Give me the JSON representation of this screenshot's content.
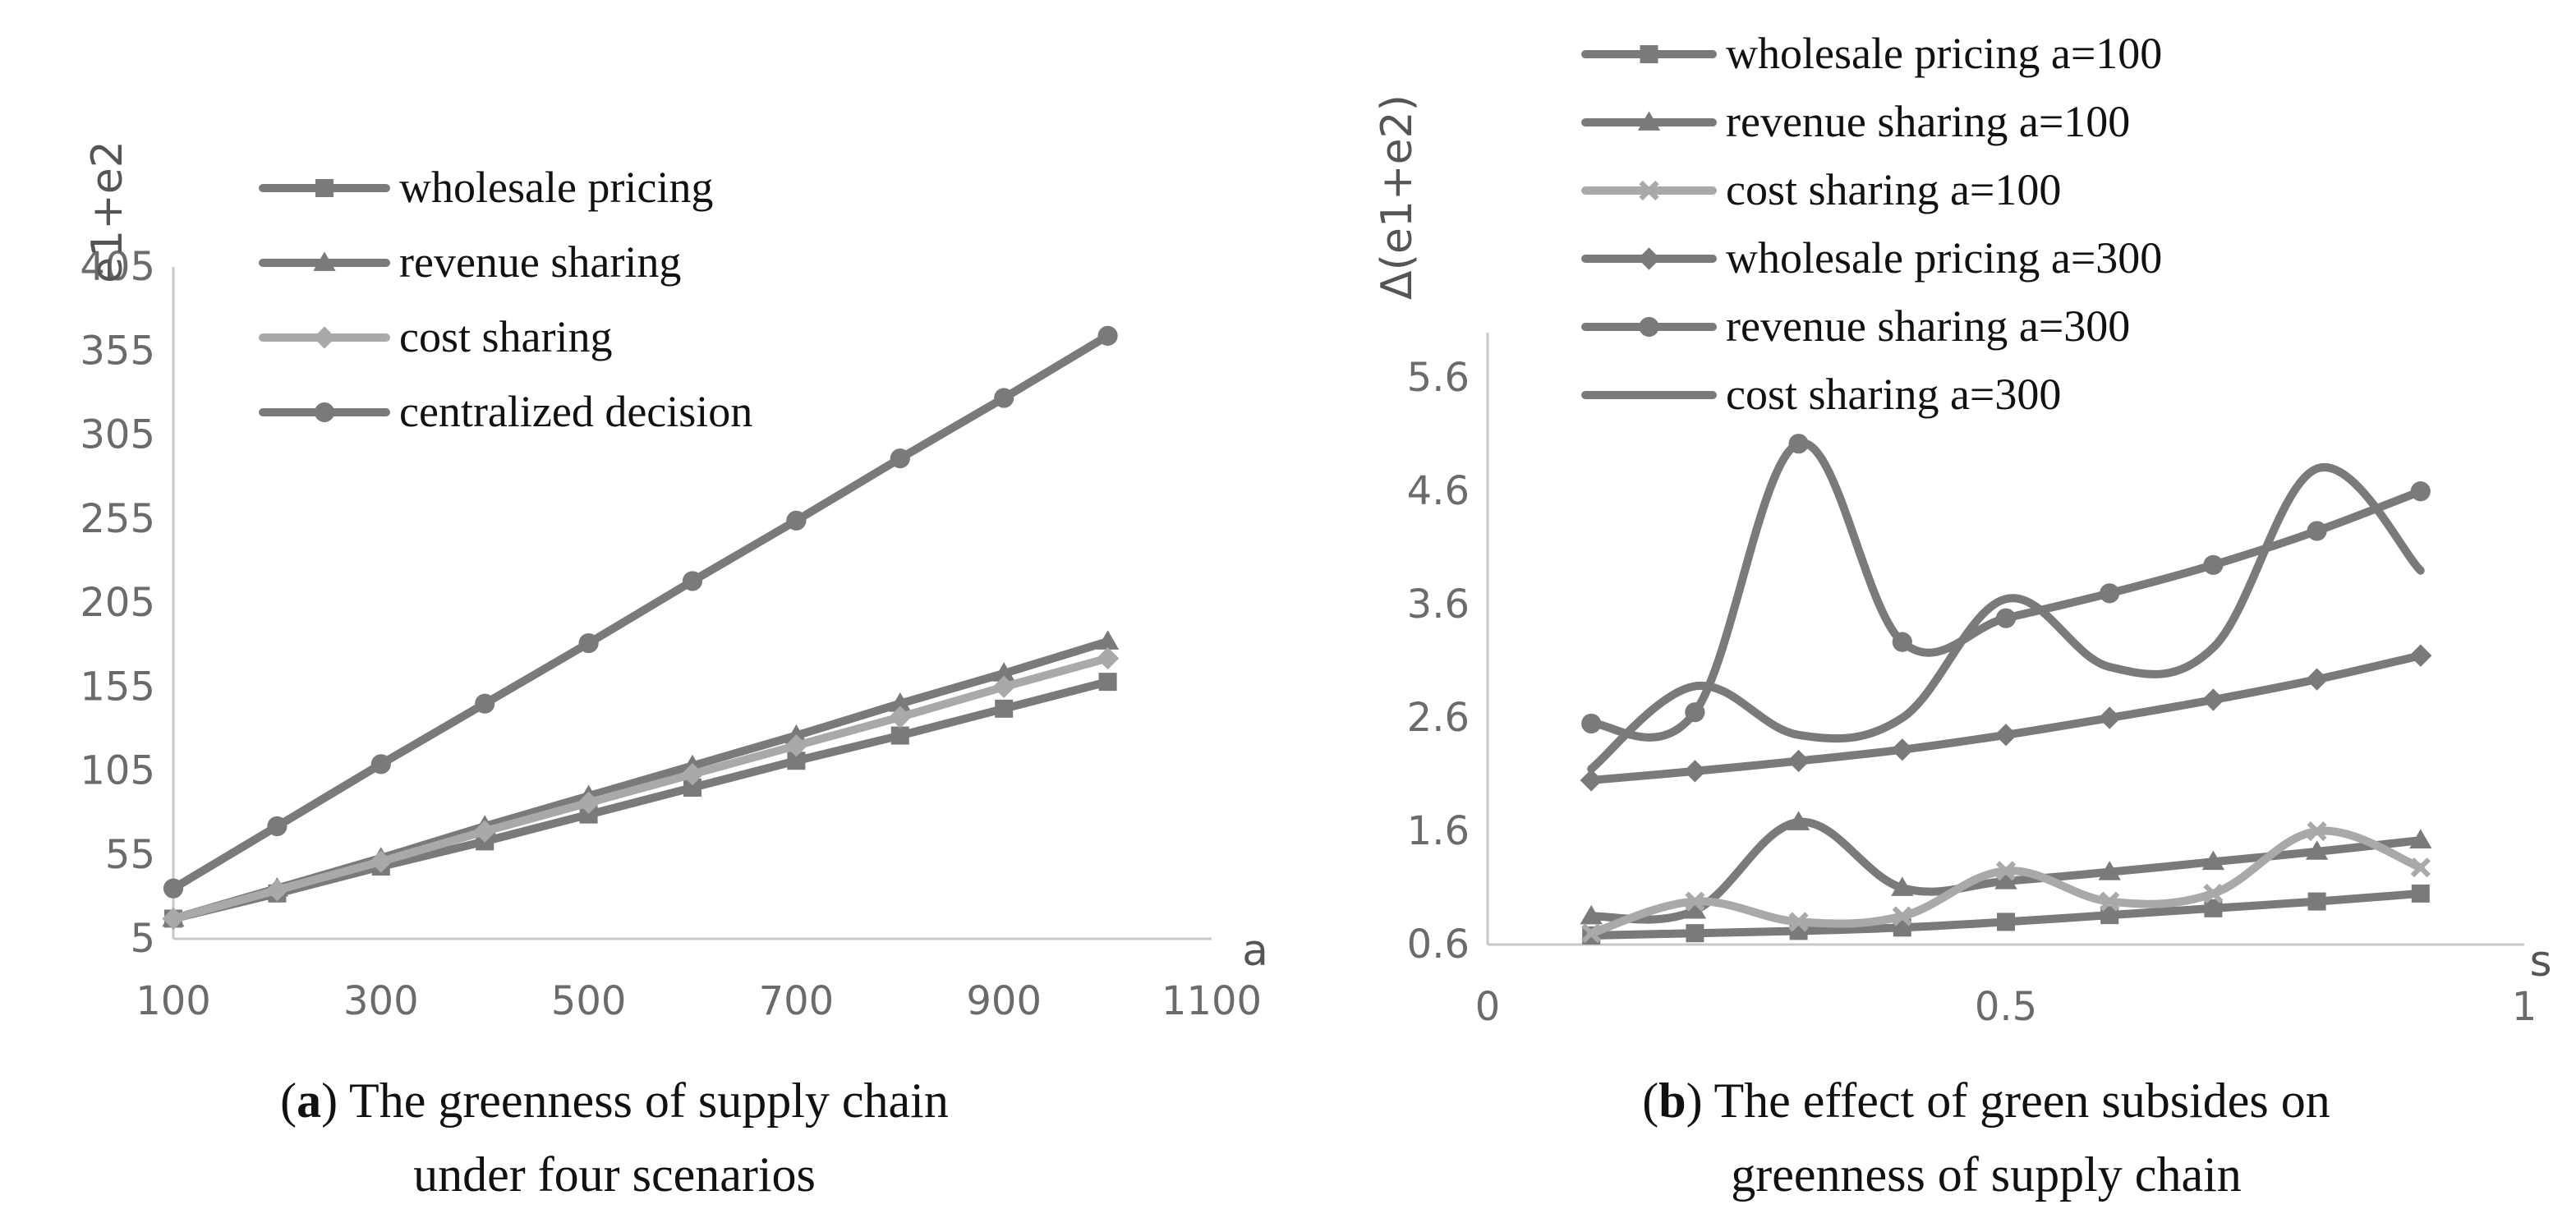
{
  "chart_data": [
    {
      "type": "line",
      "panel": "a",
      "caption_label": "a",
      "caption_lines": [
        "The greenness of supply chain",
        "under four scenarios"
      ],
      "xlabel": "a",
      "ylabel": "e1+e2",
      "xlim": [
        100,
        1100
      ],
      "ylim": [
        5,
        405
      ],
      "xticks": [
        100,
        300,
        500,
        700,
        900,
        1100
      ],
      "yticks": [
        5,
        55,
        105,
        155,
        205,
        255,
        305,
        355,
        405
      ],
      "legend_position": "top-left",
      "x": [
        100,
        200,
        300,
        400,
        500,
        600,
        700,
        800,
        900,
        1000
      ],
      "series": [
        {
          "name": "wholesale pricing",
          "marker": "square",
          "color": "#7a7a7a",
          "smooth": false,
          "values": [
            17,
            32,
            48,
            63,
            79,
            95,
            111,
            126,
            142,
            158
          ]
        },
        {
          "name": "revenue sharing",
          "marker": "triangle",
          "color": "#7a7a7a",
          "smooth": false,
          "values": [
            17,
            35,
            53,
            72,
            90,
            108,
            126,
            145,
            163,
            182
          ]
        },
        {
          "name": "cost sharing",
          "marker": "diamond",
          "color": "#a9a9a9",
          "smooth": false,
          "values": [
            17,
            34,
            51,
            69,
            86,
            103,
            120,
            137,
            155,
            172
          ]
        },
        {
          "name": "centralized decision",
          "marker": "circle",
          "color": "#7a7a7a",
          "smooth": false,
          "values": [
            35,
            72,
            109,
            145,
            181,
            218,
            254,
            291,
            327,
            364
          ]
        }
      ]
    },
    {
      "type": "line",
      "panel": "b",
      "caption_label": "b",
      "caption_lines": [
        "The effect of green subsides on",
        "greenness of supply chain"
      ],
      "xlabel": "s",
      "ylabel": "Δ(e1+e2)",
      "xlim": [
        0,
        1
      ],
      "ylim": [
        0.6,
        6.0
      ],
      "xticks": [
        0,
        0.5,
        1
      ],
      "yticks": [
        0.6,
        1.6,
        2.6,
        3.6,
        4.6,
        5.6
      ],
      "legend_position": "top",
      "x": [
        0.1,
        0.2,
        0.3,
        0.4,
        0.5,
        0.6,
        0.7,
        0.8,
        0.9
      ],
      "series": [
        {
          "name": "wholesale pricing a=100",
          "marker": "square",
          "color": "#7a7a7a",
          "smooth": true,
          "values": [
            0.68,
            0.7,
            0.72,
            0.75,
            0.8,
            0.86,
            0.92,
            0.98,
            1.05
          ]
        },
        {
          "name": "revenue sharing a=100",
          "marker": "triangle",
          "color": "#7a7a7a",
          "smooth": true,
          "values": [
            0.85,
            0.9,
            1.68,
            1.1,
            1.16,
            1.24,
            1.33,
            1.42,
            1.52
          ]
        },
        {
          "name": "cost sharing a=100",
          "marker": "x",
          "color": "#a9a9a9",
          "smooth": true,
          "values": [
            0.7,
            0.98,
            0.8,
            0.85,
            1.25,
            0.98,
            1.05,
            1.6,
            1.28
          ]
        },
        {
          "name": "wholesale pricing a=300",
          "marker": "diamond",
          "color": "#7a7a7a",
          "smooth": true,
          "values": [
            2.05,
            2.13,
            2.22,
            2.32,
            2.45,
            2.6,
            2.76,
            2.94,
            3.15
          ]
        },
        {
          "name": "revenue sharing a=300",
          "marker": "circle",
          "color": "#7a7a7a",
          "smooth": true,
          "values": [
            2.55,
            2.65,
            5.02,
            3.27,
            3.48,
            3.7,
            3.95,
            4.25,
            4.6
          ]
        },
        {
          "name": "cost sharing a=300",
          "marker": "none",
          "color": "#7a7a7a",
          "smooth": true,
          "values": [
            2.15,
            2.88,
            2.45,
            2.6,
            3.65,
            3.05,
            3.22,
            4.8,
            3.9
          ]
        }
      ]
    }
  ]
}
